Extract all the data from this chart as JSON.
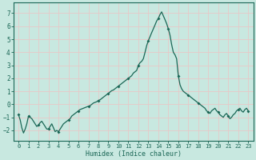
{
  "xlabel": "Humidex (Indice chaleur)",
  "xlim": [
    -0.5,
    23.5
  ],
  "ylim": [
    -2.8,
    7.8
  ],
  "yticks": [
    -2,
    -1,
    0,
    1,
    2,
    3,
    4,
    5,
    6,
    7
  ],
  "xticks": [
    0,
    1,
    2,
    3,
    4,
    5,
    6,
    7,
    8,
    9,
    10,
    11,
    12,
    13,
    14,
    15,
    16,
    17,
    18,
    19,
    20,
    21,
    22,
    23
  ],
  "bg_color": "#c8e8e0",
  "grid_color": "#e8c8c8",
  "line_color": "#1a6655",
  "marker_color": "#1a6655",
  "x": [
    0.0,
    0.17,
    0.33,
    0.5,
    0.67,
    0.83,
    1.0,
    1.17,
    1.33,
    1.5,
    1.67,
    1.83,
    2.0,
    2.17,
    2.33,
    2.5,
    2.67,
    2.83,
    3.0,
    3.17,
    3.33,
    3.5,
    3.67,
    3.83,
    4.0,
    4.17,
    4.33,
    4.5,
    4.67,
    4.83,
    5.0,
    5.17,
    5.33,
    5.5,
    5.67,
    5.83,
    6.0,
    6.17,
    6.33,
    6.5,
    6.67,
    6.83,
    7.0,
    7.17,
    7.33,
    7.5,
    7.67,
    7.83,
    8.0,
    8.17,
    8.33,
    8.5,
    8.67,
    8.83,
    9.0,
    9.17,
    9.33,
    9.5,
    9.67,
    9.83,
    10.0,
    10.17,
    10.33,
    10.5,
    10.67,
    10.83,
    11.0,
    11.17,
    11.33,
    11.5,
    11.67,
    11.83,
    12.0,
    12.17,
    12.33,
    12.5,
    12.67,
    12.83,
    13.0,
    13.17,
    13.33,
    13.5,
    13.67,
    13.83,
    14.0,
    14.17,
    14.33,
    14.5,
    14.67,
    14.83,
    15.0,
    15.17,
    15.33,
    15.5,
    15.67,
    15.83,
    16.0,
    16.17,
    16.33,
    16.5,
    16.67,
    16.83,
    17.0,
    17.17,
    17.33,
    17.5,
    17.67,
    17.83,
    18.0,
    18.17,
    18.33,
    18.5,
    18.67,
    18.83,
    19.0,
    19.17,
    19.33,
    19.5,
    19.67,
    19.83,
    20.0,
    20.17,
    20.33,
    20.5,
    20.67,
    20.83,
    21.0,
    21.17,
    21.33,
    21.5,
    21.67,
    21.83,
    22.0,
    22.17,
    22.33,
    22.5,
    22.67,
    22.83,
    23.0
  ],
  "y": [
    -0.8,
    -1.2,
    -1.8,
    -2.2,
    -1.9,
    -1.5,
    -0.9,
    -1.0,
    -1.1,
    -1.3,
    -1.5,
    -1.7,
    -1.6,
    -1.4,
    -1.3,
    -1.5,
    -1.7,
    -1.9,
    -1.9,
    -1.7,
    -1.5,
    -1.8,
    -2.1,
    -2.0,
    -2.1,
    -1.9,
    -1.7,
    -1.5,
    -1.4,
    -1.3,
    -1.2,
    -1.1,
    -0.9,
    -0.8,
    -0.7,
    -0.6,
    -0.5,
    -0.4,
    -0.35,
    -0.3,
    -0.25,
    -0.2,
    -0.15,
    -0.1,
    0.0,
    0.1,
    0.15,
    0.2,
    0.3,
    0.35,
    0.45,
    0.55,
    0.65,
    0.75,
    0.85,
    0.95,
    1.05,
    1.1,
    1.2,
    1.3,
    1.4,
    1.5,
    1.6,
    1.7,
    1.8,
    1.9,
    2.0,
    2.1,
    2.2,
    2.4,
    2.5,
    2.6,
    3.0,
    3.2,
    3.3,
    3.5,
    4.0,
    4.5,
    4.9,
    5.2,
    5.5,
    5.8,
    6.1,
    6.4,
    6.6,
    6.9,
    7.1,
    6.8,
    6.5,
    6.2,
    5.8,
    5.3,
    4.6,
    4.0,
    3.8,
    3.5,
    2.2,
    1.5,
    1.2,
    1.0,
    0.9,
    0.8,
    0.7,
    0.6,
    0.5,
    0.4,
    0.3,
    0.2,
    0.1,
    0.0,
    -0.1,
    -0.2,
    -0.3,
    -0.5,
    -0.6,
    -0.7,
    -0.5,
    -0.4,
    -0.3,
    -0.5,
    -0.6,
    -0.8,
    -0.9,
    -1.0,
    -0.8,
    -0.7,
    -0.9,
    -1.1,
    -1.0,
    -0.8,
    -0.7,
    -0.5,
    -0.4,
    -0.3,
    -0.5,
    -0.6,
    -0.4,
    -0.3,
    -0.5
  ]
}
